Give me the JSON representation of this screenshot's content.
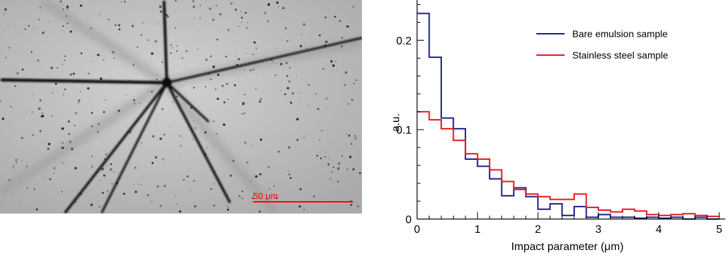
{
  "micrograph": {
    "scale_bar_label": "50 μm",
    "scale_bar_color": "#ff0000"
  },
  "chart_data": {
    "type": "line",
    "step": true,
    "xlabel": "Impact parameter (μm)",
    "ylabel": "a.u.",
    "xlim": [
      0,
      5.1
    ],
    "ylim": [
      0,
      0.245
    ],
    "x_ticks": [
      0,
      1,
      2,
      3,
      4,
      5
    ],
    "y_ticks": [
      0,
      0.1,
      0.2
    ],
    "y_tick_labels": [
      "0",
      "0.1",
      "0.2"
    ],
    "grid": false,
    "legend_position": "top-right",
    "bin_width": 0.2,
    "bin_edges": [
      0,
      0.2,
      0.4,
      0.6,
      0.8,
      1.0,
      1.2,
      1.4,
      1.6,
      1.8,
      2.0,
      2.2,
      2.4,
      2.6,
      2.8,
      3.0,
      3.2,
      3.4,
      3.6,
      3.8,
      4.0,
      4.2,
      4.4,
      4.6,
      4.8,
      5.0
    ],
    "series": [
      {
        "name": "Bare emulsion sample",
        "color": "#1a1a8c",
        "values": [
          0.23,
          0.181,
          0.113,
          0.101,
          0.067,
          0.059,
          0.045,
          0.026,
          0.035,
          0.025,
          0.011,
          0.017,
          0.004,
          0.014,
          0.002,
          0.005,
          0.002,
          0.002,
          0.001,
          0.002,
          0.001,
          0.002,
          0.0,
          0.002,
          0.0
        ]
      },
      {
        "name": "Stainless steel sample",
        "color": "#e8121a",
        "values": [
          0.12,
          0.111,
          0.101,
          0.088,
          0.073,
          0.067,
          0.055,
          0.042,
          0.033,
          0.028,
          0.025,
          0.022,
          0.022,
          0.028,
          0.013,
          0.01,
          0.008,
          0.011,
          0.009,
          0.005,
          0.004,
          0.005,
          0.006,
          0.004,
          0.003
        ]
      }
    ]
  }
}
